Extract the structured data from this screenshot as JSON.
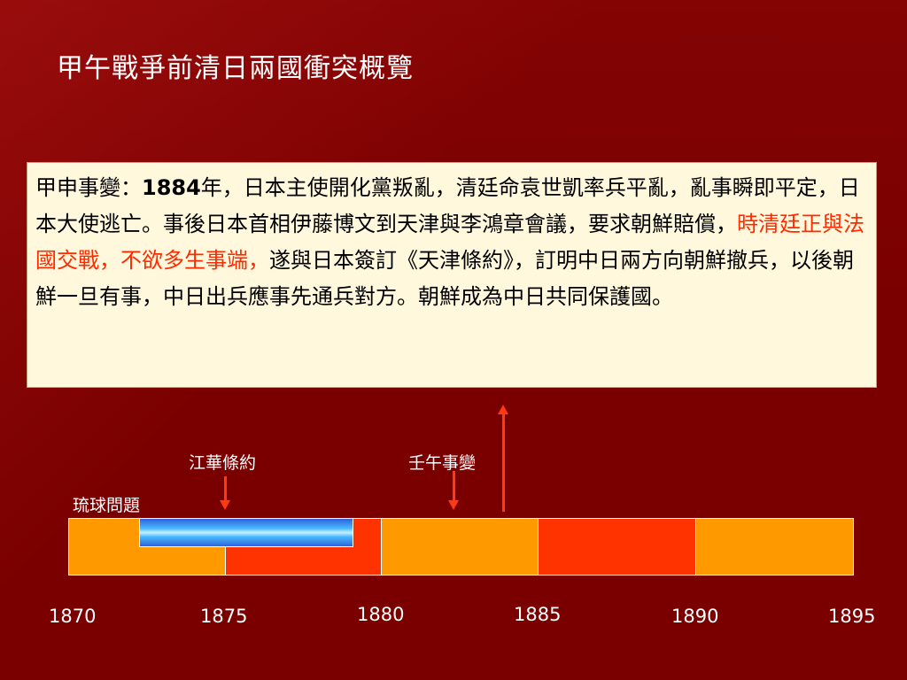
{
  "title": "甲午戰爭前清日兩國衝突概覽",
  "textbox": {
    "part1": "甲申事變：",
    "year": "1884",
    "part2": "年，日本主使開化黨叛亂，清廷命袁世凱率兵平亂，亂事瞬即平定，日本大使逃亡。事後日本首相伊藤博文到天津與李鴻章會議，要求朝鮮賠償，",
    "highlight": "時清廷正與法國交戰，不欲多生事端，",
    "part3": "遂與日本簽訂《天津條約》，訂明中日兩方向朝鮮撤兵，以後朝鮮一旦有事，中日出兵應事先通兵對方。朝鮮成為中日共同保護國。"
  },
  "timeline": {
    "labels": {
      "ryukyu": "琉球問題",
      "ganghwa": "江華條約",
      "imo": "壬午事變"
    },
    "ticks": [
      "1870",
      "1875",
      "1880",
      "1885",
      "1890",
      "1895"
    ]
  },
  "colors": {
    "background": "#7a0000",
    "orange": "#ff9900",
    "red": "#ff3300",
    "highlight_text": "#ff2a00",
    "textbox_bg": "#fff8dc"
  }
}
